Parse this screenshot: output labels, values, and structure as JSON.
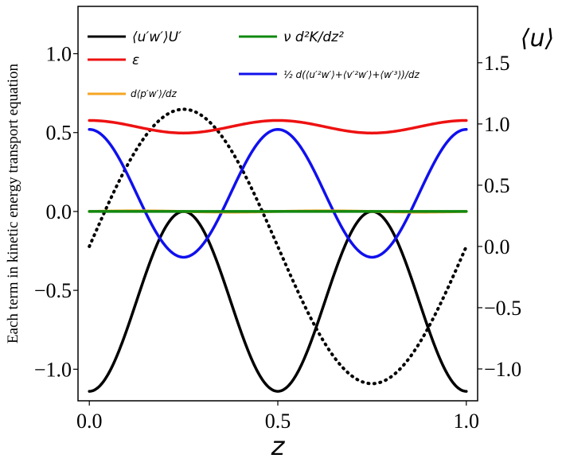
{
  "chart_data": {
    "type": "line",
    "xlabel": "z",
    "ylabel": "Each term in kinetic energy transport equation",
    "y2label": "⟨u⟩",
    "xlim": [
      -0.03,
      1.03
    ],
    "ylim": [
      -1.2,
      1.3
    ],
    "y2lim": [
      -1.26,
      1.96
    ],
    "xticks": [
      0.0,
      0.5,
      1.0
    ],
    "xtick_labels": [
      "0.0",
      "0.5",
      "1.0"
    ],
    "yticks": [
      -1.0,
      -0.5,
      0.0,
      0.5,
      1.0
    ],
    "ytick_labels": [
      "−1.0",
      "−0.5",
      "0.0",
      "0.5",
      "1.0"
    ],
    "y2ticks": [
      -1.0,
      -0.5,
      0.0,
      0.5,
      1.0,
      1.5
    ],
    "y2tick_labels": [
      "−1.0",
      "−0.5",
      "0.0",
      "0.5",
      "1.0",
      "1.5"
    ],
    "legend_position": "top",
    "series": [
      {
        "name": "⟨u′w′⟩U′",
        "color": "#000000",
        "style": "solid",
        "axis": "left",
        "function": "-0.57*(1+cos(4*pi*z))",
        "z_samples": [
          0.0,
          0.125,
          0.25,
          0.375,
          0.5,
          0.625,
          0.75,
          0.875,
          1.0
        ],
        "values": [
          -1.14,
          -0.57,
          0.0,
          -0.57,
          -1.14,
          -0.57,
          0.0,
          -0.57,
          -1.14
        ]
      },
      {
        "name": "ε",
        "color": "#ee1111",
        "style": "solid",
        "axis": "left",
        "function": "0.537+0.04*cos(4*pi*z)",
        "z_samples": [
          0.0,
          0.25,
          0.5,
          0.75,
          1.0
        ],
        "values": [
          0.577,
          0.497,
          0.577,
          0.497,
          0.577
        ]
      },
      {
        "name": "d⟨p′w′⟩/dz",
        "color": "#f5a623",
        "style": "solid",
        "axis": "left",
        "function": "0.004*sin(4*pi*z)",
        "values": [
          0.0,
          0.0,
          0.0
        ]
      },
      {
        "name": "ν d²K/dz²",
        "color": "#118811",
        "style": "solid",
        "axis": "left",
        "function": "0",
        "values": [
          0.0,
          0.0,
          0.0
        ]
      },
      {
        "name": "½ d(⟨u′²w′⟩+⟨v′²w′⟩+⟨w′³⟩)/dz",
        "color": "#1010ee",
        "style": "solid",
        "axis": "left",
        "function": "0.115+0.405*cos(4*pi*z)",
        "z_samples": [
          0.0,
          0.25,
          0.5,
          0.75,
          1.0
        ],
        "values": [
          0.52,
          -0.29,
          0.52,
          -0.29,
          0.52
        ]
      },
      {
        "name": "⟨u⟩",
        "color": "#000000",
        "style": "dotted",
        "axis": "right",
        "function": "1.12*sin(2*pi*z)",
        "z_samples": [
          0.0,
          0.25,
          0.5,
          0.75,
          1.0
        ],
        "values": [
          0.0,
          1.12,
          0.0,
          -1.12,
          0.0
        ]
      }
    ]
  }
}
